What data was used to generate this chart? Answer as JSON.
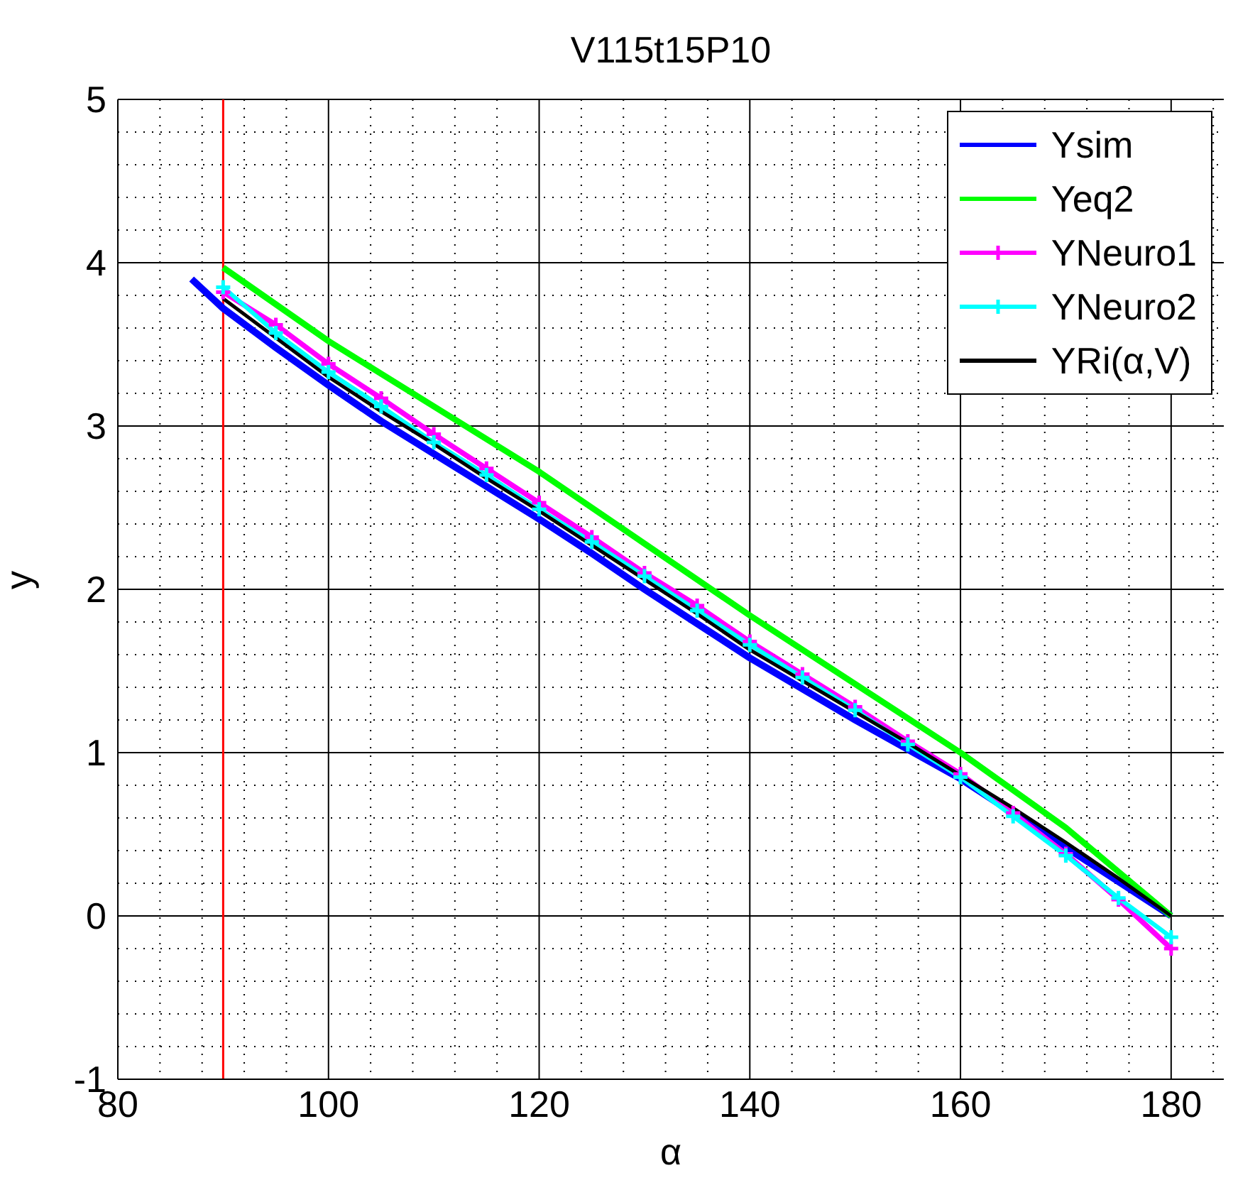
{
  "chart_data": {
    "type": "line",
    "title": "V115t15P10",
    "xlabel": "α",
    "ylabel": "y",
    "xlim": [
      80,
      185
    ],
    "xticks": [
      80,
      100,
      120,
      140,
      160,
      180
    ],
    "ylim": [
      -1,
      5
    ],
    "yticks": [
      -1,
      0,
      1,
      2,
      3,
      4,
      5
    ],
    "grid": true,
    "legend": "top right",
    "line_style": "solid",
    "ref_lines": [
      {
        "axis": "x",
        "value": 90,
        "color": "#ff0000"
      }
    ],
    "series": [
      {
        "name": "Ysim",
        "color": "#0000ff",
        "marker": "none",
        "x": [
          87,
          90,
          95,
          100,
          105,
          110,
          115,
          120,
          125,
          130,
          135,
          140,
          145,
          150,
          155,
          160,
          165,
          170,
          175,
          180
        ],
        "values": [
          3.9,
          3.72,
          3.48,
          3.25,
          3.03,
          2.83,
          2.63,
          2.43,
          2.22,
          2.0,
          1.79,
          1.58,
          1.39,
          1.2,
          1.02,
          0.84,
          0.63,
          0.42,
          0.21,
          0
        ]
      },
      {
        "name": "Yeq2",
        "color": "#00ff00",
        "marker": "none",
        "x": [
          90,
          100,
          110,
          120,
          130,
          140,
          150,
          160,
          170,
          180
        ],
        "values": [
          3.97,
          3.52,
          3.12,
          2.72,
          2.28,
          1.84,
          1.42,
          1.0,
          0.54,
          0
        ]
      },
      {
        "name": "YNeuro1",
        "color": "#ff00ff",
        "marker": "cross",
        "x": [
          90,
          95,
          100,
          105,
          110,
          115,
          120,
          125,
          130,
          135,
          140,
          145,
          150,
          155,
          160,
          165,
          170,
          175,
          180
        ],
        "values": [
          3.82,
          3.62,
          3.38,
          3.17,
          2.95,
          2.74,
          2.53,
          2.32,
          2.1,
          1.9,
          1.68,
          1.48,
          1.28,
          1.07,
          0.87,
          0.63,
          0.38,
          0.1,
          -0.2
        ]
      },
      {
        "name": "YNeuro2",
        "color": "#00ffff",
        "marker": "cross",
        "x": [
          90,
          95,
          100,
          105,
          110,
          115,
          120,
          125,
          130,
          135,
          140,
          145,
          150,
          155,
          160,
          165,
          170,
          175,
          180
        ],
        "values": [
          3.85,
          3.57,
          3.33,
          3.12,
          2.9,
          2.7,
          2.49,
          2.29,
          2.08,
          1.87,
          1.66,
          1.46,
          1.26,
          1.05,
          0.85,
          0.61,
          0.37,
          0.11,
          -0.13
        ]
      },
      {
        "name": "YRi(α,V)",
        "color": "#000000",
        "marker": "none",
        "x": [
          90,
          95,
          100,
          105,
          110,
          115,
          120,
          125,
          130,
          135,
          140,
          145,
          150,
          155,
          160,
          165,
          170,
          175,
          180
        ],
        "values": [
          3.78,
          3.54,
          3.3,
          3.09,
          2.89,
          2.68,
          2.48,
          2.27,
          2.06,
          1.85,
          1.63,
          1.44,
          1.25,
          1.06,
          0.86,
          0.66,
          0.45,
          0.23,
          0
        ]
      }
    ]
  }
}
